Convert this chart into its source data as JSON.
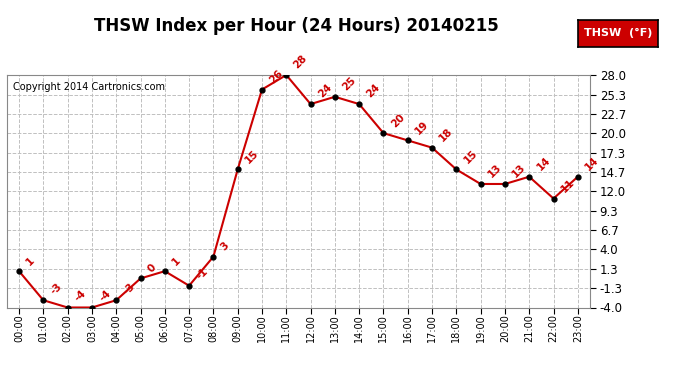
{
  "title": "THSW Index per Hour (24 Hours) 20140215",
  "copyright": "Copyright 2014 Cartronics.com",
  "legend_label": "THSW  (°F)",
  "hours": [
    "00:00",
    "01:00",
    "02:00",
    "03:00",
    "04:00",
    "05:00",
    "06:00",
    "07:00",
    "08:00",
    "09:00",
    "10:00",
    "11:00",
    "12:00",
    "13:00",
    "14:00",
    "15:00",
    "16:00",
    "17:00",
    "18:00",
    "19:00",
    "20:00",
    "21:00",
    "22:00",
    "23:00"
  ],
  "data_hours": [
    0,
    1,
    2,
    3,
    4,
    5,
    6,
    7,
    8,
    9,
    10,
    11,
    12,
    13,
    14,
    15,
    16,
    17,
    18,
    19,
    20,
    21,
    22,
    23
  ],
  "data_values": [
    1,
    -3,
    -4,
    -4,
    -3,
    0,
    1,
    -1,
    3,
    15,
    26,
    28,
    24,
    25,
    24,
    20,
    19,
    18,
    15,
    13,
    13,
    14,
    11,
    14
  ],
  "data_labels": [
    "1",
    "-3",
    "-4",
    "-4",
    "-3",
    "0",
    "1",
    "-1",
    "3",
    "15",
    "26",
    "28",
    "24",
    "25",
    "24",
    "20",
    "19",
    "18",
    "15",
    "13",
    "13",
    "14",
    "11",
    "14"
  ],
  "ylim": [
    -4.0,
    28.0
  ],
  "yticks": [
    -4.0,
    -1.3,
    1.3,
    4.0,
    6.7,
    9.3,
    12.0,
    14.7,
    17.3,
    20.0,
    22.7,
    25.3,
    28.0
  ],
  "line_color": "#cc0000",
  "marker_color": "#000000",
  "bg_color": "#ffffff",
  "grid_color": "#c0c0c0",
  "title_fontsize": 12,
  "annotation_fontsize": 7.5,
  "legend_bg": "#cc0000",
  "legend_text_color": "#ffffff",
  "copyright_fontsize": 7,
  "ytick_fontsize": 8.5,
  "xtick_fontsize": 7
}
